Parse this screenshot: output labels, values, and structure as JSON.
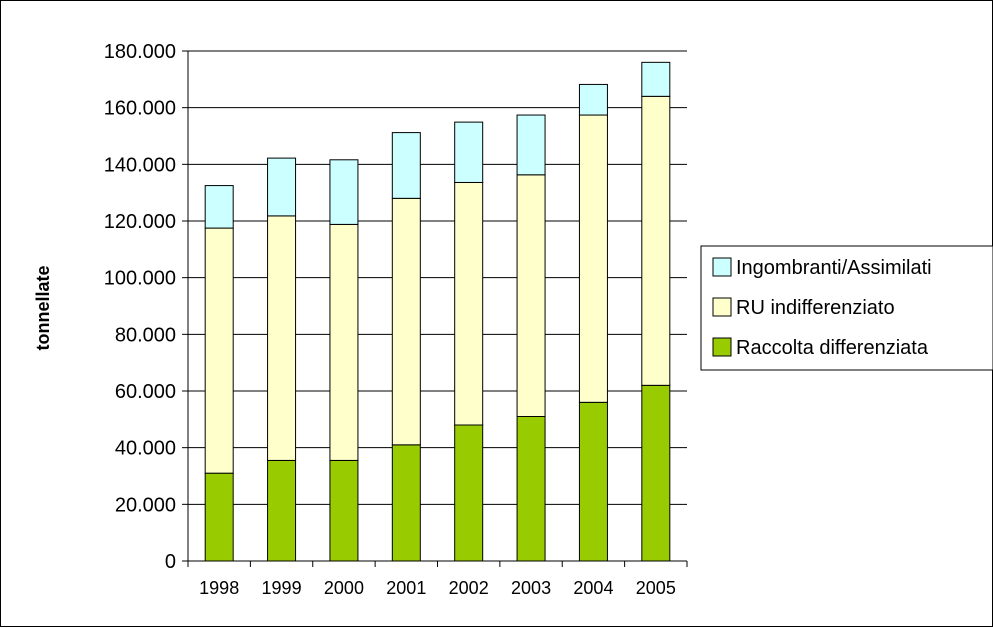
{
  "chart_data": {
    "type": "bar",
    "stacked": true,
    "title": "",
    "xlabel": "",
    "ylabel": "tonnellate",
    "ylim": [
      0,
      180000
    ],
    "ytick_step": 20000,
    "ytick_labels": [
      "0",
      "20.000",
      "40.000",
      "60.000",
      "80.000",
      "100.000",
      "120.000",
      "140.000",
      "160.000",
      "180.000"
    ],
    "grid": "horizontal",
    "legend_position": "right",
    "categories": [
      "1998",
      "1999",
      "2000",
      "2001",
      "2002",
      "2003",
      "2004",
      "2005"
    ],
    "series": [
      {
        "name": "Raccolta differenziata",
        "color": "#99cc00",
        "values": [
          31000,
          35500,
          35500,
          41000,
          48000,
          51000,
          56000,
          62000
        ]
      },
      {
        "name": "RU indifferenziato",
        "color": "#ffffcc",
        "values": [
          86500,
          86300,
          83300,
          87000,
          85600,
          85300,
          101400,
          102000
        ]
      },
      {
        "name": "Ingombranti/Assimilati",
        "color": "#ccffff",
        "values": [
          15000,
          20400,
          22800,
          23200,
          21300,
          21100,
          10800,
          12000
        ]
      }
    ]
  }
}
